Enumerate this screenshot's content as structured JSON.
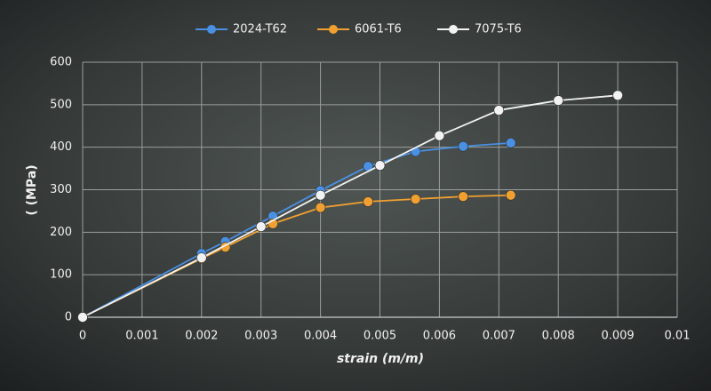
{
  "chart_data": {
    "type": "line",
    "x_label": "strain (m/m)",
    "y_label": "( (MPa)",
    "xlim": [
      0,
      0.01
    ],
    "xticks": [
      0,
      0.001,
      0.002,
      0.003,
      0.004,
      0.005,
      0.006,
      0.007,
      0.008,
      0.009,
      0.01
    ],
    "ylim": [
      0,
      600
    ],
    "yticks": [
      0,
      100,
      200,
      300,
      400,
      500,
      600
    ],
    "grid": true,
    "legend": "top",
    "series": [
      {
        "name": "2024-T62",
        "color": "#4a90e2",
        "x": [
          0,
          0.002,
          0.0024,
          0.0032,
          0.004,
          0.0048,
          0.0056,
          0.0064,
          0.0072
        ],
        "values": [
          0,
          150,
          178,
          238,
          298,
          355,
          390,
          402,
          410
        ]
      },
      {
        "name": "6061-T6",
        "color": "#f0a030",
        "x": [
          0,
          0.002,
          0.0024,
          0.0032,
          0.004,
          0.0048,
          0.0056,
          0.0064,
          0.0072
        ],
        "values": [
          0,
          138,
          165,
          220,
          258,
          272,
          278,
          284,
          287
        ]
      },
      {
        "name": "7075-T6",
        "color": "#f2f2f2",
        "x": [
          0,
          0.002,
          0.003,
          0.004,
          0.005,
          0.006,
          0.007,
          0.008,
          0.009
        ],
        "values": [
          0,
          140,
          213,
          287,
          357,
          427,
          487,
          510,
          522
        ]
      }
    ]
  }
}
